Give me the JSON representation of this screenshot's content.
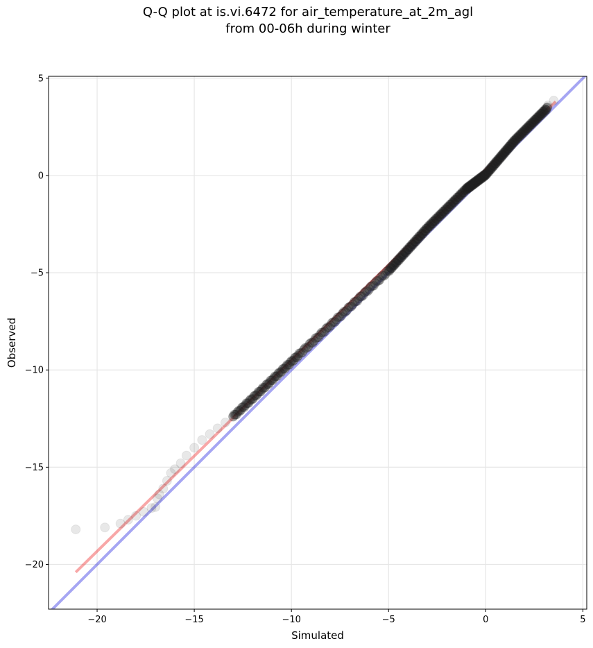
{
  "chart_data": {
    "type": "scatter",
    "title_line1": "Q-Q plot at is.vi.6472 for air_temperature_at_2m_agl",
    "title_line2": "from 00-06h during winter",
    "xlabel": "Simulated",
    "ylabel": "Observed",
    "xlim": [
      -22.5,
      5.2
    ],
    "ylim": [
      -22.3,
      5.1
    ],
    "xticks": [
      -20,
      -15,
      -10,
      -5,
      0,
      5
    ],
    "yticks": [
      5,
      0,
      -5,
      -10,
      -15,
      -20
    ],
    "xtick_labels": [
      "−20",
      "−15",
      "−10",
      "−5",
      "0",
      "5"
    ],
    "ytick_labels": [
      "5",
      "0",
      "−5",
      "−10",
      "−15",
      "−20"
    ],
    "grid": true,
    "reference_line": {
      "name": "1:1 line",
      "color": "#0000dd",
      "from": [
        -22.5,
        -22.5
      ],
      "to": [
        5.2,
        5.2
      ]
    },
    "fit_line": {
      "name": "linear fit",
      "color": "#ee2222",
      "from": [
        -21.1,
        -20.4
      ],
      "to": [
        3.6,
        3.8
      ]
    },
    "sparse_points": [
      [
        -21.1,
        -18.2
      ],
      [
        -19.6,
        -18.1
      ],
      [
        -18.8,
        -17.9
      ],
      [
        -18.4,
        -17.7
      ],
      [
        -18.0,
        -17.5
      ],
      [
        -17.6,
        -17.3
      ],
      [
        -17.2,
        -17.1
      ],
      [
        -17.0,
        -17.05
      ],
      [
        -16.9,
        -16.6
      ],
      [
        -16.8,
        -16.4
      ],
      [
        -16.6,
        -16.1
      ],
      [
        -16.4,
        -15.7
      ],
      [
        -16.2,
        -15.3
      ],
      [
        -16.0,
        -15.1
      ],
      [
        -15.7,
        -14.8
      ],
      [
        -15.4,
        -14.4
      ],
      [
        -15.0,
        -14.0
      ],
      [
        -14.6,
        -13.6
      ],
      [
        -14.2,
        -13.3
      ],
      [
        -13.8,
        -13.0
      ],
      [
        -13.4,
        -12.7
      ],
      [
        -13.0,
        -12.4
      ],
      [
        3.2,
        3.6
      ],
      [
        3.5,
        3.85
      ]
    ],
    "dense_segments": [
      {
        "from": [
          -13.0,
          -12.4
        ],
        "to": [
          -9.6,
          -9.2
        ]
      },
      {
        "from": [
          -9.6,
          -9.2
        ],
        "to": [
          -5.0,
          -4.9
        ]
      },
      {
        "from": [
          -5.0,
          -4.9
        ],
        "to": [
          -3.0,
          -2.7
        ]
      },
      {
        "from": [
          -3.0,
          -2.7
        ],
        "to": [
          -1.0,
          -0.7
        ]
      },
      {
        "from": [
          -1.0,
          -0.7
        ],
        "to": [
          0.0,
          0.05
        ]
      },
      {
        "from": [
          0.0,
          0.05
        ],
        "to": [
          1.5,
          1.8
        ]
      },
      {
        "from": [
          1.5,
          1.8
        ],
        "to": [
          3.2,
          3.5
        ]
      }
    ],
    "colors": {
      "points": "#222222",
      "reference": "#0000dd",
      "fit": "#ee2222",
      "grid": "#e6e6e6"
    }
  }
}
